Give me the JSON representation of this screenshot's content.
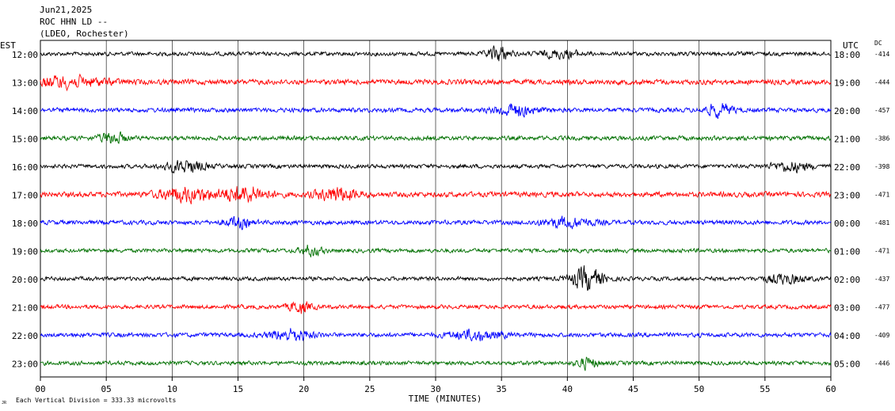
{
  "header": {
    "date": "Jun21,2025",
    "station": "ROC HHN LD --",
    "network": "(LDEO, Rochester)"
  },
  "left_axis_label": "EST",
  "right_axis_label": "UTC",
  "dc_label": "DC",
  "chart_data": {
    "type": "line",
    "xlabel": "TIME (MINUTES)",
    "xlim": [
      0,
      60
    ],
    "x_ticks": [
      "00",
      "05",
      "10",
      "15",
      "20",
      "25",
      "30",
      "35",
      "40",
      "45",
      "50",
      "55",
      "60"
    ],
    "colors_cycle": [
      "#000000",
      "#ff0000",
      "#0000ff",
      "#007000"
    ],
    "rows": [
      {
        "est": "12:00",
        "utc": "18:00",
        "dc": "-414",
        "color": "#000000",
        "amp": 0.55,
        "events": [
          {
            "t": 34.8,
            "a": 2.0,
            "w": 0.8
          },
          {
            "t": 39.5,
            "a": 1.0,
            "w": 1.5
          }
        ]
      },
      {
        "est": "13:00",
        "utc": "19:00",
        "dc": "-444",
        "color": "#ff0000",
        "amp": 0.7,
        "events": [
          {
            "t": 2.0,
            "a": 1.3,
            "w": 3.0
          }
        ]
      },
      {
        "est": "14:00",
        "utc": "20:00",
        "dc": "-457",
        "color": "#0000ff",
        "amp": 0.6,
        "events": [
          {
            "t": 36.0,
            "a": 1.6,
            "w": 1.5
          },
          {
            "t": 51.5,
            "a": 1.6,
            "w": 1.0
          }
        ]
      },
      {
        "est": "15:00",
        "utc": "21:00",
        "dc": "-386",
        "color": "#007000",
        "amp": 0.6,
        "events": [
          {
            "t": 5.5,
            "a": 1.4,
            "w": 1.0
          }
        ]
      },
      {
        "est": "16:00",
        "utc": "22:00",
        "dc": "-398",
        "color": "#000000",
        "amp": 0.55,
        "events": [
          {
            "t": 11.0,
            "a": 1.6,
            "w": 1.5
          },
          {
            "t": 57.0,
            "a": 1.2,
            "w": 1.5
          }
        ]
      },
      {
        "est": "17:00",
        "utc": "23:00",
        "dc": "-471",
        "color": "#ff0000",
        "amp": 0.7,
        "events": [
          {
            "t": 11.0,
            "a": 1.8,
            "w": 2.0
          },
          {
            "t": 15.5,
            "a": 2.0,
            "w": 1.8
          },
          {
            "t": 22.5,
            "a": 1.8,
            "w": 1.5
          }
        ]
      },
      {
        "est": "18:00",
        "utc": "00:00",
        "dc": "-481",
        "color": "#0000ff",
        "amp": 0.6,
        "events": [
          {
            "t": 15.0,
            "a": 1.3,
            "w": 1.0
          },
          {
            "t": 40.0,
            "a": 1.2,
            "w": 2.0
          }
        ]
      },
      {
        "est": "19:00",
        "utc": "01:00",
        "dc": "-471",
        "color": "#007000",
        "amp": 0.55,
        "events": [
          {
            "t": 20.5,
            "a": 1.3,
            "w": 0.8
          }
        ]
      },
      {
        "est": "20:00",
        "utc": "02:00",
        "dc": "-437",
        "color": "#000000",
        "amp": 0.55,
        "events": [
          {
            "t": 41.5,
            "a": 3.0,
            "w": 1.2
          },
          {
            "t": 56.5,
            "a": 1.2,
            "w": 1.5
          }
        ]
      },
      {
        "est": "21:00",
        "utc": "03:00",
        "dc": "-477",
        "color": "#ff0000",
        "amp": 0.55,
        "events": [
          {
            "t": 19.7,
            "a": 1.6,
            "w": 0.8
          }
        ]
      },
      {
        "est": "22:00",
        "utc": "04:00",
        "dc": "-409",
        "color": "#0000ff",
        "amp": 0.6,
        "events": [
          {
            "t": 19.0,
            "a": 1.5,
            "w": 1.5
          },
          {
            "t": 33.0,
            "a": 1.2,
            "w": 2.0
          }
        ]
      },
      {
        "est": "23:00",
        "utc": "05:00",
        "dc": "-446",
        "color": "#007000",
        "amp": 0.55,
        "events": [
          {
            "t": 41.5,
            "a": 1.4,
            "w": 0.8
          }
        ]
      }
    ]
  },
  "footer": {
    "logo_text": "JR",
    "scale_note": "Each Vertical Division = 333.33 microvolts"
  }
}
